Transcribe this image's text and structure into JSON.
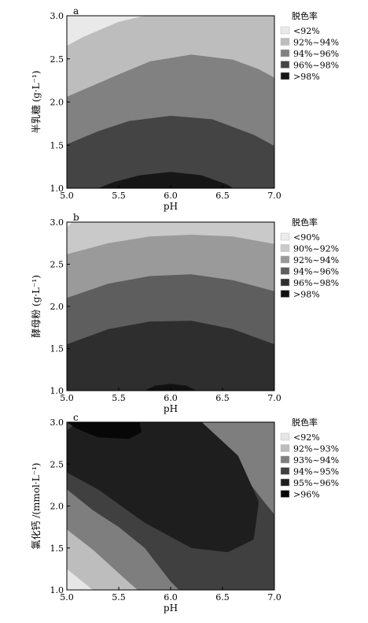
{
  "chart_data": [
    {
      "type": "contour",
      "panel_label": "a",
      "xlabel": "pH",
      "ylabel": "半乳糖 (g·L⁻¹)",
      "xlim": [
        5.0,
        7.0
      ],
      "ylim": [
        1.0,
        3.0
      ],
      "x_ticks": [
        "5.0",
        "5.5",
        "6.0",
        "6.5",
        "7.0"
      ],
      "y_ticks": [
        "1.0",
        "1.5",
        "2.0",
        "2.5",
        "3.0"
      ],
      "legend_title": "脱色率",
      "legend": [
        {
          "label": "<92%",
          "color": "#e9e9e9"
        },
        {
          "label": "92%~94%",
          "color": "#bdbdbd"
        },
        {
          "label": "94%~96%",
          "color": "#818181"
        },
        {
          "label": "96%~98%",
          "color": "#444444"
        },
        {
          "label": ">98%",
          "color": "#161616"
        }
      ],
      "boundaries": [
        {
          "between": [
            "<92%",
            "92%~94%"
          ],
          "points": [
            [
              5.0,
              2.65
            ],
            [
              5.15,
              2.75
            ],
            [
              5.5,
              2.93
            ],
            [
              5.75,
              3.0
            ]
          ]
        },
        {
          "between": [
            "92%~94%",
            "94%~96%"
          ],
          "points": [
            [
              5.0,
              2.06
            ],
            [
              5.5,
              2.32
            ],
            [
              5.8,
              2.47
            ],
            [
              6.2,
              2.55
            ],
            [
              6.6,
              2.49
            ],
            [
              6.85,
              2.38
            ],
            [
              7.0,
              2.28
            ]
          ]
        },
        {
          "between": [
            "94%~96%",
            "96%~98%"
          ],
          "points": [
            [
              5.0,
              1.51
            ],
            [
              5.3,
              1.66
            ],
            [
              5.6,
              1.78
            ],
            [
              6.0,
              1.84
            ],
            [
              6.4,
              1.8
            ],
            [
              6.8,
              1.62
            ],
            [
              7.0,
              1.49
            ]
          ]
        },
        {
          "between": [
            "96%~98%",
            ">98%"
          ],
          "points": [
            [
              5.3,
              1.0
            ],
            [
              5.45,
              1.07
            ],
            [
              5.7,
              1.15
            ],
            [
              6.0,
              1.19
            ],
            [
              6.3,
              1.15
            ],
            [
              6.55,
              1.04
            ],
            [
              6.6,
              1.0
            ]
          ]
        }
      ]
    },
    {
      "type": "contour",
      "panel_label": "b",
      "xlabel": "pH",
      "ylabel": "酵母粉 (g·L⁻¹)",
      "xlim": [
        5.0,
        7.0
      ],
      "ylim": [
        1.0,
        3.0
      ],
      "x_ticks": [
        "5.0",
        "5.5",
        "6.0",
        "6.5",
        "7.0"
      ],
      "y_ticks": [
        "1.0",
        "1.5",
        "2.0",
        "2.5",
        "3.0"
      ],
      "legend_title": "脱色率",
      "legend": [
        {
          "label": "<90%",
          "color": "#ececec"
        },
        {
          "label": "90%~92%",
          "color": "#c9c9c9"
        },
        {
          "label": "92%~94%",
          "color": "#9a9a9a"
        },
        {
          "label": "94%~96%",
          "color": "#5e5e5e"
        },
        {
          "label": "96%~98%",
          "color": "#2e2e2e"
        },
        {
          "label": ">98%",
          "color": "#111111"
        }
      ],
      "boundaries": [
        {
          "between": [
            "<90%",
            "90%~92%"
          ],
          "points": [
            [
              5.0,
              2.93
            ],
            [
              5.05,
              3.0
            ]
          ]
        },
        {
          "between": [
            "90%~92%",
            "92%~94%"
          ],
          "points": [
            [
              5.0,
              2.62
            ],
            [
              5.4,
              2.75
            ],
            [
              5.8,
              2.83
            ],
            [
              6.2,
              2.85
            ],
            [
              6.6,
              2.83
            ],
            [
              7.0,
              2.74
            ]
          ]
        },
        {
          "between": [
            "92%~94%",
            "94%~96%"
          ],
          "points": [
            [
              5.0,
              2.1
            ],
            [
              5.4,
              2.27
            ],
            [
              5.8,
              2.36
            ],
            [
              6.2,
              2.38
            ],
            [
              6.6,
              2.31
            ],
            [
              7.0,
              2.18
            ]
          ]
        },
        {
          "between": [
            "94%~96%",
            "96%~98%"
          ],
          "points": [
            [
              5.0,
              1.55
            ],
            [
              5.4,
              1.73
            ],
            [
              5.8,
              1.82
            ],
            [
              6.2,
              1.83
            ],
            [
              6.6,
              1.73
            ],
            [
              7.0,
              1.55
            ]
          ]
        },
        {
          "between": [
            "96%~98%",
            ">98%"
          ],
          "points": [
            [
              5.75,
              1.0
            ],
            [
              5.85,
              1.06
            ],
            [
              6.0,
              1.08
            ],
            [
              6.15,
              1.06
            ],
            [
              6.25,
              1.0
            ]
          ]
        }
      ]
    },
    {
      "type": "contour",
      "panel_label": "c",
      "xlabel": "pH",
      "ylabel": "氯化钙 /(mmol·L⁻¹)",
      "xlim": [
        5.0,
        7.0
      ],
      "ylim": [
        1.0,
        3.0
      ],
      "x_ticks": [
        "5.0",
        "5.5",
        "6.0",
        "6.5",
        "7.0"
      ],
      "y_ticks": [
        "1.0",
        "1.5",
        "2.0",
        "2.5",
        "3.0"
      ],
      "legend_title": "脱色率",
      "legend": [
        {
          "label": "<92%",
          "color": "#e6e6e6"
        },
        {
          "label": "92%~93%",
          "color": "#bdbdbd"
        },
        {
          "label": "93%~94%",
          "color": "#7e7e7e"
        },
        {
          "label": "94%~95%",
          "color": "#404040"
        },
        {
          "label": "95%~96%",
          "color": "#1e1e1e"
        },
        {
          "label": ">96%",
          "color": "#070707"
        }
      ],
      "regions": [
        {
          "level": "94%~95%",
          "polygon": [
            [
              5.0,
              3.0
            ],
            [
              7.0,
              3.0
            ],
            [
              7.0,
              1.0
            ],
            [
              5.0,
              1.0
            ]
          ]
        },
        {
          "level": "93%~94%",
          "polygon": [
            [
              5.0,
              2.2
            ],
            [
              5.25,
              1.95
            ],
            [
              5.5,
              1.75
            ],
            [
              5.75,
              1.5
            ],
            [
              6.0,
              1.1
            ],
            [
              6.08,
              1.0
            ],
            [
              5.0,
              1.0
            ]
          ]
        },
        {
          "level": "93%~94%",
          "polygon": [
            [
              6.0,
              3.0
            ],
            [
              6.35,
              2.75
            ],
            [
              6.65,
              2.45
            ],
            [
              6.9,
              2.05
            ],
            [
              7.0,
              1.9
            ],
            [
              7.0,
              3.0
            ]
          ]
        },
        {
          "level": "92%~93%",
          "polygon": [
            [
              5.0,
              1.72
            ],
            [
              5.25,
              1.48
            ],
            [
              5.5,
              1.2
            ],
            [
              5.68,
              1.0
            ],
            [
              5.0,
              1.0
            ]
          ]
        },
        {
          "level": "<92%",
          "polygon": [
            [
              5.0,
              1.25
            ],
            [
              5.1,
              1.15
            ],
            [
              5.25,
              1.0
            ],
            [
              5.0,
              1.0
            ]
          ]
        },
        {
          "level": "95%~96%",
          "polygon": [
            [
              5.0,
              2.9
            ],
            [
              5.1,
              3.0
            ],
            [
              6.3,
              3.0
            ],
            [
              6.65,
              2.6
            ],
            [
              6.85,
              2.05
            ],
            [
              6.8,
              1.6
            ],
            [
              6.55,
              1.45
            ],
            [
              6.2,
              1.5
            ],
            [
              5.75,
              1.8
            ],
            [
              5.3,
              2.2
            ],
            [
              5.0,
              2.4
            ]
          ]
        },
        {
          "level": ">96%",
          "polygon": [
            [
              5.0,
              3.0
            ],
            [
              5.7,
              3.0
            ],
            [
              5.72,
              2.88
            ],
            [
              5.6,
              2.8
            ],
            [
              5.3,
              2.82
            ],
            [
              5.1,
              2.92
            ]
          ]
        }
      ]
    }
  ]
}
